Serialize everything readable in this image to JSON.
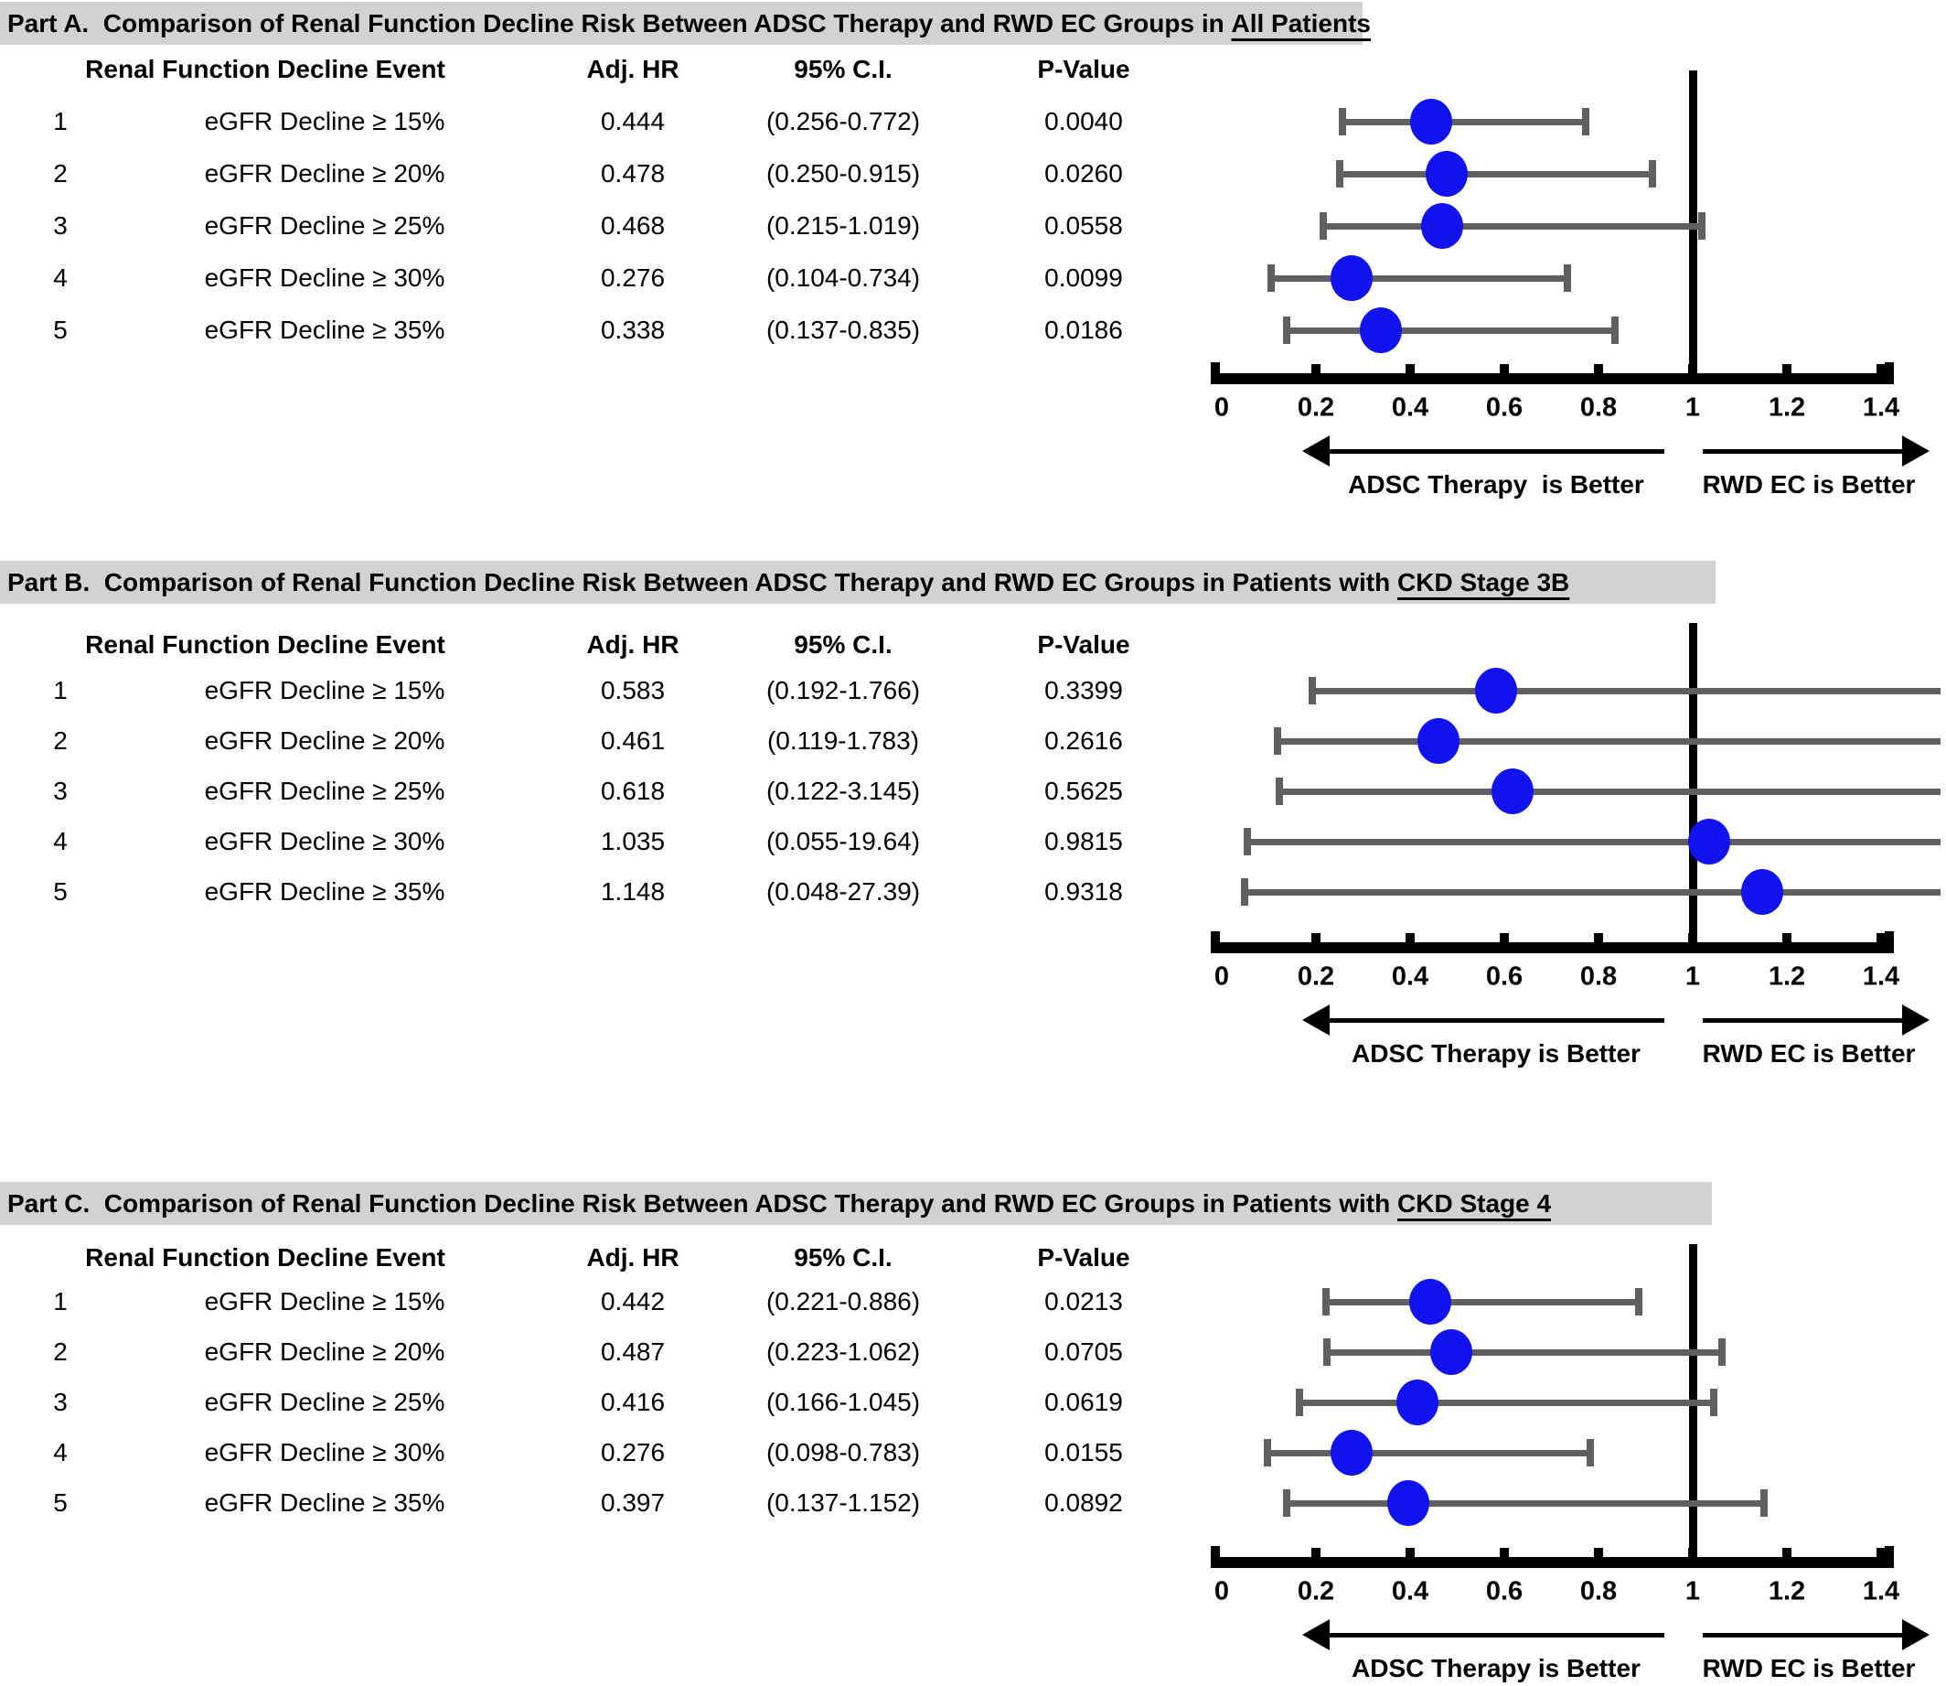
{
  "colors": {
    "dot": "#1212ef",
    "error_bar": "#5f5f5f",
    "header_band": "#d2d2d2",
    "refline": "#000000"
  },
  "chart_data": [
    {
      "type": "scatter",
      "title": "Part A.  Comparison of Renal Function Decline Risk Between ADSC Therapy and RWD EC Groups in All Patients",
      "title_prefix": "Part A.  Comparison of Renal Function Decline Risk Between ADSC Therapy and RWD EC Groups in ",
      "title_underline": "All Patients",
      "columns": {
        "event": "Renal Function Decline Event",
        "hr": "Adj. HR",
        "ci": "95% C.I.",
        "p": "P-Value"
      },
      "xlabel": "",
      "ylabel": "",
      "xlim": [
        0,
        1.4
      ],
      "x_ticks": [
        "0",
        "0.2",
        "0.4",
        "0.6",
        "0.8",
        "1",
        "1.2",
        "1.4"
      ],
      "x_tick_values": [
        0,
        0.2,
        0.4,
        0.6,
        0.8,
        1,
        1.2,
        1.4
      ],
      "refline": 1,
      "arrow_left_label": "ADSC Therapy  is Better",
      "arrow_right_label": "RWD EC is Better",
      "rows": [
        {
          "num": "1",
          "event": "eGFR Decline ≥ 15%",
          "adj_hr": 0.444,
          "ci_low": 0.256,
          "ci_high": 0.772,
          "hr_text": "0.444",
          "ci_text": "(0.256-0.772)",
          "p_text": "0.0040"
        },
        {
          "num": "2",
          "event": "eGFR Decline ≥ 20%",
          "adj_hr": 0.478,
          "ci_low": 0.25,
          "ci_high": 0.915,
          "hr_text": "0.478",
          "ci_text": "(0.250-0.915)",
          "p_text": "0.0260"
        },
        {
          "num": "3",
          "event": "eGFR Decline ≥ 25%",
          "adj_hr": 0.468,
          "ci_low": 0.215,
          "ci_high": 1.019,
          "hr_text": "0.468",
          "ci_text": "(0.215-1.019)",
          "p_text": "0.0558"
        },
        {
          "num": "4",
          "event": "eGFR Decline ≥ 30%",
          "adj_hr": 0.276,
          "ci_low": 0.104,
          "ci_high": 0.734,
          "hr_text": "0.276",
          "ci_text": "(0.104-0.734)",
          "p_text": "0.0099"
        },
        {
          "num": "5",
          "event": "eGFR Decline ≥ 35%",
          "adj_hr": 0.338,
          "ci_low": 0.137,
          "ci_high": 0.835,
          "hr_text": "0.338",
          "ci_text": "(0.137-0.835)",
          "p_text": "0.0186"
        }
      ]
    },
    {
      "type": "scatter",
      "title": "Part B.  Comparison of Renal Function Decline Risk Between ADSC Therapy and RWD EC Groups in Patients with CKD Stage 3B",
      "title_prefix": "Part B.  Comparison of Renal Function Decline Risk Between ADSC Therapy and RWD EC Groups in Patients with ",
      "title_underline": "CKD Stage 3B",
      "columns": {
        "event": "Renal Function Decline Event",
        "hr": "Adj. HR",
        "ci": "95% C.I.",
        "p": "P-Value"
      },
      "xlabel": "",
      "ylabel": "",
      "xlim": [
        0,
        1.4
      ],
      "x_ticks": [
        "0",
        "0.2",
        "0.4",
        "0.6",
        "0.8",
        "1",
        "1.2",
        "1.4"
      ],
      "x_tick_values": [
        0,
        0.2,
        0.4,
        0.6,
        0.8,
        1,
        1.2,
        1.4
      ],
      "refline": 1,
      "arrow_left_label": "ADSC Therapy is Better",
      "arrow_right_label": "RWD EC is Better",
      "rows": [
        {
          "num": "1",
          "event": "eGFR Decline ≥ 15%",
          "adj_hr": 0.583,
          "ci_low": 0.192,
          "ci_high": 1.766,
          "hr_text": "0.583",
          "ci_text": "(0.192-1.766)",
          "p_text": "0.3399"
        },
        {
          "num": "2",
          "event": "eGFR Decline ≥ 20%",
          "adj_hr": 0.461,
          "ci_low": 0.119,
          "ci_high": 1.783,
          "hr_text": "0.461",
          "ci_text": "(0.119-1.783)",
          "p_text": "0.2616"
        },
        {
          "num": "3",
          "event": "eGFR Decline ≥ 25%",
          "adj_hr": 0.618,
          "ci_low": 0.122,
          "ci_high": 3.145,
          "hr_text": "0.618",
          "ci_text": "(0.122-3.145)",
          "p_text": "0.5625"
        },
        {
          "num": "4",
          "event": "eGFR Decline ≥ 30%",
          "adj_hr": 1.035,
          "ci_low": 0.055,
          "ci_high": 19.64,
          "hr_text": "1.035",
          "ci_text": "(0.055-19.64)",
          "p_text": "0.9815"
        },
        {
          "num": "5",
          "event": "eGFR Decline ≥ 35%",
          "adj_hr": 1.148,
          "ci_low": 0.048,
          "ci_high": 27.39,
          "hr_text": "1.148",
          "ci_text": "(0.048-27.39)",
          "p_text": "0.9318"
        }
      ]
    },
    {
      "type": "scatter",
      "title": "Part C.  Comparison of Renal Function Decline Risk Between ADSC Therapy and RWD EC Groups in Patients with CKD Stage 4",
      "title_prefix": "Part C.  Comparison of Renal Function Decline Risk Between ADSC Therapy and RWD EC Groups in Patients with ",
      "title_underline": "CKD Stage 4",
      "columns": {
        "event": "Renal Function Decline Event",
        "hr": "Adj. HR",
        "ci": "95% C.I.",
        "p": "P-Value"
      },
      "xlabel": "",
      "ylabel": "",
      "xlim": [
        0,
        1.4
      ],
      "x_ticks": [
        "0",
        "0.2",
        "0.4",
        "0.6",
        "0.8",
        "1",
        "1.2",
        "1.4"
      ],
      "x_tick_values": [
        0,
        0.2,
        0.4,
        0.6,
        0.8,
        1,
        1.2,
        1.4
      ],
      "refline": 1,
      "arrow_left_label": "ADSC Therapy is Better",
      "arrow_right_label": "RWD EC is Better",
      "rows": [
        {
          "num": "1",
          "event": "eGFR Decline ≥ 15%",
          "adj_hr": 0.442,
          "ci_low": 0.221,
          "ci_high": 0.886,
          "hr_text": "0.442",
          "ci_text": "(0.221-0.886)",
          "p_text": "0.0213"
        },
        {
          "num": "2",
          "event": "eGFR Decline ≥ 20%",
          "adj_hr": 0.487,
          "ci_low": 0.223,
          "ci_high": 1.062,
          "hr_text": "0.487",
          "ci_text": "(0.223-1.062)",
          "p_text": "0.0705"
        },
        {
          "num": "3",
          "event": "eGFR Decline ≥ 25%",
          "adj_hr": 0.416,
          "ci_low": 0.166,
          "ci_high": 1.045,
          "hr_text": "0.416",
          "ci_text": "(0.166-1.045)",
          "p_text": "0.0619"
        },
        {
          "num": "4",
          "event": "eGFR Decline ≥ 30%",
          "adj_hr": 0.276,
          "ci_low": 0.098,
          "ci_high": 0.783,
          "hr_text": "0.276",
          "ci_text": "(0.098-0.783)",
          "p_text": "0.0155"
        },
        {
          "num": "5",
          "event": "eGFR Decline ≥ 35%",
          "adj_hr": 0.397,
          "ci_low": 0.137,
          "ci_high": 1.152,
          "hr_text": "0.397",
          "ci_text": "(0.137-1.152)",
          "p_text": "0.0892"
        }
      ]
    }
  ]
}
